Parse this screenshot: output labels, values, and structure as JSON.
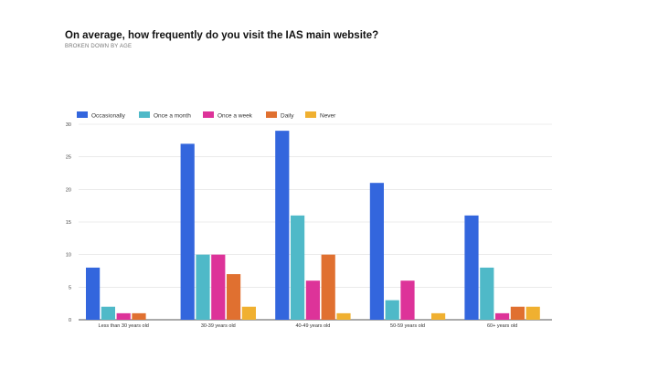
{
  "header": {
    "title": "On average, how frequently do you visit the IAS main website?",
    "subtitle": "BROKEN DOWN BY AGE"
  },
  "chart_data": {
    "type": "bar",
    "title": "On average, how frequently do you visit the IAS main website?",
    "subtitle": "BROKEN DOWN BY AGE",
    "xlabel": "",
    "ylabel": "",
    "ylim": [
      0,
      30
    ],
    "yticks": [
      0,
      5,
      10,
      15,
      20,
      25,
      30
    ],
    "grid": true,
    "legend_position": "top-left",
    "categories": [
      "Less than 30 years old",
      "30-39 years old",
      "40-49 years old",
      "50-59 years old",
      "60+ years old"
    ],
    "series": [
      {
        "name": "Occasionally",
        "color": "#3366dd",
        "values": [
          8,
          27,
          29,
          21,
          16
        ]
      },
      {
        "name": "Once a month",
        "color": "#4fb9c8",
        "values": [
          2,
          10,
          16,
          3,
          8
        ]
      },
      {
        "name": "Once a week",
        "color": "#dd3399",
        "values": [
          1,
          10,
          6,
          6,
          1
        ]
      },
      {
        "name": "Daily",
        "color": "#e07030",
        "values": [
          1,
          7,
          10,
          0,
          2
        ]
      },
      {
        "name": "Never",
        "color": "#f0b030",
        "values": [
          0,
          2,
          1,
          1,
          2
        ]
      }
    ]
  }
}
